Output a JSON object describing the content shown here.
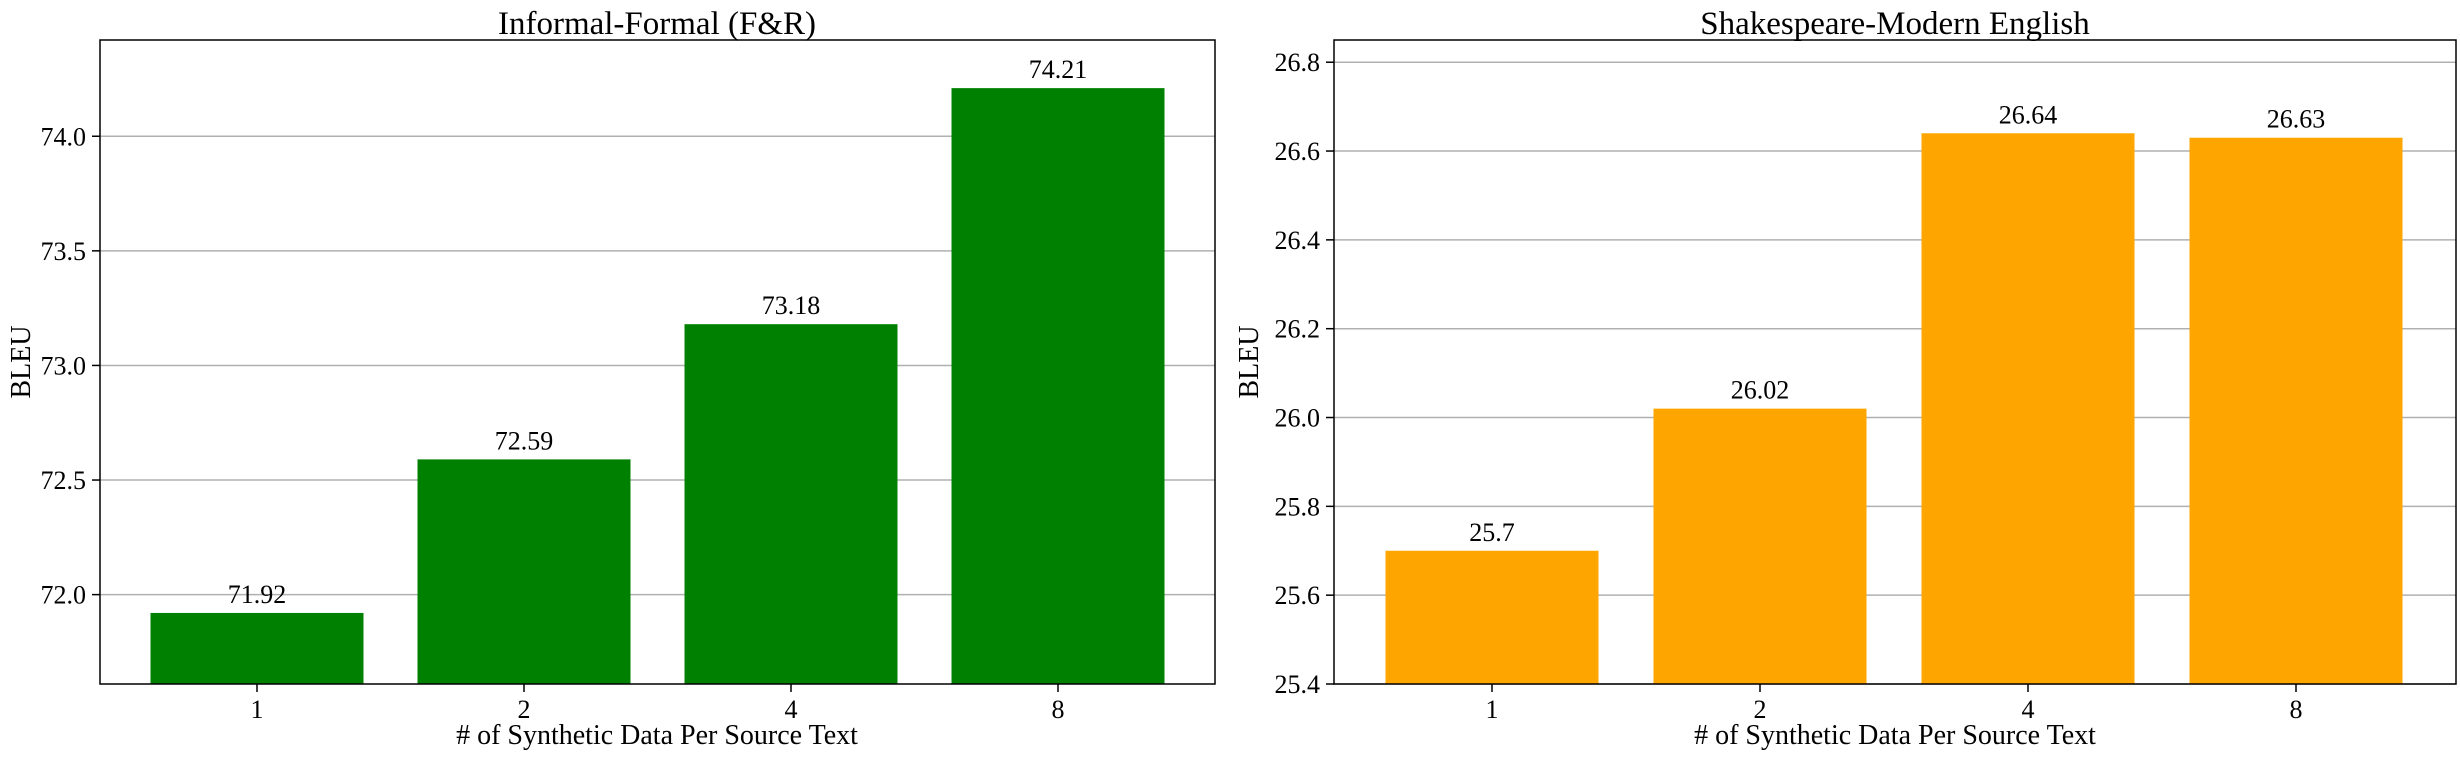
{
  "chart_data": [
    {
      "type": "bar",
      "title": "Informal-Formal (F&R)",
      "xlabel": "# of Synthetic Data Per Source Text",
      "ylabel": "BLEU",
      "categories": [
        "1",
        "2",
        "4",
        "8"
      ],
      "values": [
        71.92,
        72.59,
        73.18,
        74.21
      ],
      "data_labels": [
        "71.92",
        "72.59",
        "73.18",
        "74.21"
      ],
      "ylim": [
        71.61,
        74.42
      ],
      "yticks": [
        72.0,
        72.5,
        73.0,
        73.5,
        74.0
      ],
      "ytick_labels": [
        "72.0",
        "72.5",
        "73.0",
        "73.5",
        "74.0"
      ],
      "grid": "y",
      "color": "#008000"
    },
    {
      "type": "bar",
      "title": "Shakespeare-Modern English",
      "xlabel": "# of Synthetic Data Per Source Text",
      "ylabel": "BLEU",
      "categories": [
        "1",
        "2",
        "4",
        "8"
      ],
      "values": [
        25.7,
        26.02,
        26.64,
        26.63
      ],
      "data_labels": [
        "25.7",
        "26.02",
        "26.64",
        "26.63"
      ],
      "ylim": [
        25.4,
        26.85
      ],
      "yticks": [
        25.4,
        25.6,
        25.8,
        26.0,
        26.2,
        26.4,
        26.6,
        26.8
      ],
      "ytick_labels": [
        "25.4",
        "25.6",
        "25.8",
        "26.0",
        "26.2",
        "26.4",
        "26.6",
        "26.8"
      ],
      "grid": "y",
      "color": "#FFA500"
    }
  ]
}
